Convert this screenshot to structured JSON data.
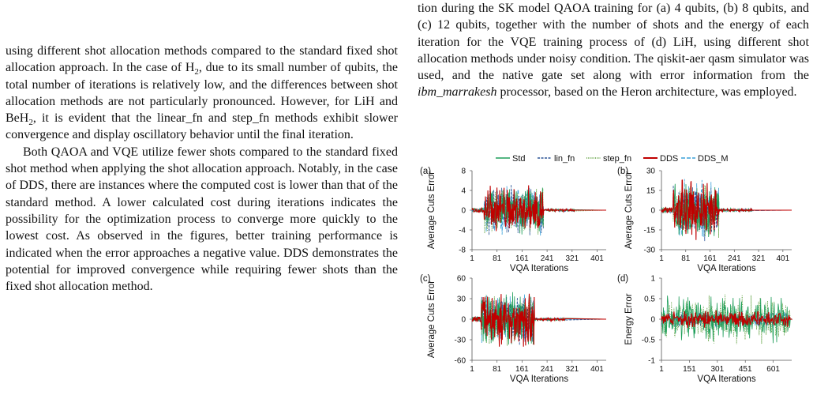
{
  "left_column": {
    "p1": {
      "a": "using different shot allocation methods compared to the standard fixed shot allocation approach. In the case of H",
      "b": ", due to its small number of qubits, the total number of iterations is relatively low, and the differences between shot allocation methods are not particularly pronounced. However, for LiH and BeH",
      "c": ", it is evident that the linear_fn and step_fn methods exhibit slower convergence and display oscillatory behavior until the final iteration."
    },
    "subscript": "2",
    "p2": "Both QAOA and VQE utilize fewer shots compared to the standard fixed shot method when applying the shot allocation approach. Notably, in the case of DDS, there are instances where the computed cost is lower than that of the standard method. A lower calculated cost during iterations indicates the possibility for the optimization process to converge more quickly to the lowest cost. As observed in the figures, better training performance is indicated when the error approaches a negative value. DDS demonstrates the potential for improved convergence while requiring fewer shots than the fixed shot allocation method."
  },
  "right_column": {
    "caption_a": "tion during the SK model QAOA training for (a) 4 qubits, (b) 8 qubits, and (c) 12 qubits, together with the number of shots and the energy of each iteration for the VQE training process of (d) LiH, using different shot allocation methods under noisy condition. The qiskit-aer qasm simulator was used, and the native gate set along with error information from the ",
    "caption_ital": "ibm_marrakesh",
    "caption_b": " processor, based on the Heron architecture, was employed."
  },
  "legend": [
    {
      "name": "Std",
      "color": "#1f9e5a",
      "dash": "solid"
    },
    {
      "name": "lin_fn",
      "color": "#2d5597",
      "dash": "dash"
    },
    {
      "name": "step_fn",
      "color": "#5a9e3a",
      "dash": "dot"
    },
    {
      "name": "DDS",
      "color": "#c00000",
      "dash": "solid"
    },
    {
      "name": "DDS_M",
      "color": "#3aa0d8",
      "dash": "longdash"
    }
  ],
  "chart_data": [
    {
      "type": "line",
      "panel": "(a)",
      "xlabel": "VQA Iterations",
      "ylabel": "Average Cuts Error",
      "xticks": [
        1,
        81,
        161,
        241,
        321,
        401
      ],
      "yticks": [
        8,
        4,
        0,
        -4,
        -8
      ],
      "xlim": [
        1,
        430
      ],
      "ylim": [
        -8,
        8
      ],
      "active_x": [
        40,
        230
      ],
      "tail_x": 330,
      "amplitude": 5.5
    },
    {
      "type": "line",
      "panel": "(b)",
      "xlabel": "VQA Iterations",
      "ylabel": "Average Cuts Error",
      "xticks": [
        1,
        81,
        161,
        241,
        321,
        401
      ],
      "yticks": [
        30,
        15,
        0,
        -15,
        -30
      ],
      "xlim": [
        1,
        430
      ],
      "ylim": [
        -30,
        30
      ],
      "active_x": [
        40,
        190
      ],
      "tail_x": 300,
      "amplitude": 25
    },
    {
      "type": "line",
      "panel": "(c)",
      "xlabel": "VQA Iterations",
      "ylabel": "Average Cuts Error",
      "xticks": [
        1,
        81,
        161,
        241,
        321,
        401
      ],
      "yticks": [
        60,
        30,
        0,
        -30,
        -60
      ],
      "xlim": [
        1,
        430
      ],
      "ylim": [
        -60,
        60
      ],
      "active_x": [
        30,
        200
      ],
      "tail_x": 300,
      "amplitude": 45
    },
    {
      "type": "line",
      "panel": "(d)",
      "xlabel": "VQA Iterations",
      "ylabel": "Energy Error",
      "xticks": [
        1,
        151,
        301,
        451,
        601
      ],
      "yticks": [
        1,
        0.5,
        0,
        -0.5,
        -1
      ],
      "xlim": [
        1,
        700
      ],
      "ylim": [
        -1,
        1
      ],
      "active_x": [
        1,
        690
      ],
      "tail_x": 700,
      "amplitude": 0.65
    }
  ]
}
